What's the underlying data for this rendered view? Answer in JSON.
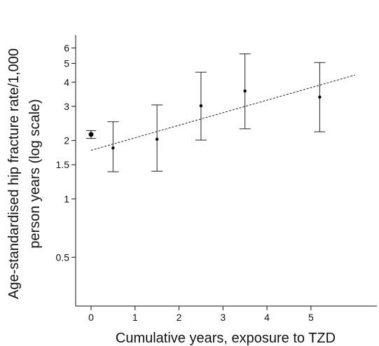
{
  "chart_data": {
    "type": "scatter",
    "title": "",
    "xlabel": "Cumulative years, exposure to TZD",
    "ylabel_lines": [
      "Age-standardised hip fracture rate/1,000",
      "person years (log scale)"
    ],
    "y_scale": "log",
    "xlim": [
      -0.35,
      6.5
    ],
    "ylim": [
      0.28,
      7.0
    ],
    "x_ticks": [
      0,
      1,
      2,
      3,
      4,
      5
    ],
    "x_tick_labels": [
      "0",
      "1",
      "2",
      "3",
      "4",
      "5"
    ],
    "y_ticks": [
      0.5,
      1,
      1.5,
      2,
      3,
      4,
      5,
      6
    ],
    "y_tick_labels": [
      "0.5",
      "1",
      "1.5",
      "2",
      "3",
      "4",
      "5",
      "6"
    ],
    "grid": false,
    "legend": "none",
    "series": [
      {
        "points": [
          {
            "x": 0.0,
            "y": 2.15,
            "lower": 2.05,
            "upper": 2.25,
            "reference": true
          },
          {
            "x": 0.5,
            "y": 1.83,
            "lower": 1.38,
            "upper": 2.5
          },
          {
            "x": 1.5,
            "y": 2.03,
            "lower": 1.39,
            "upper": 3.05
          },
          {
            "x": 2.5,
            "y": 3.02,
            "lower": 2.01,
            "upper": 4.5
          },
          {
            "x": 3.5,
            "y": 3.6,
            "lower": 2.3,
            "upper": 5.6
          },
          {
            "x": 5.2,
            "y": 3.35,
            "lower": 2.22,
            "upper": 5.05
          }
        ]
      }
    ],
    "trend_line": {
      "x": [
        0,
        6.0
      ],
      "y": [
        1.78,
        4.35
      ],
      "style": "dashed"
    }
  }
}
